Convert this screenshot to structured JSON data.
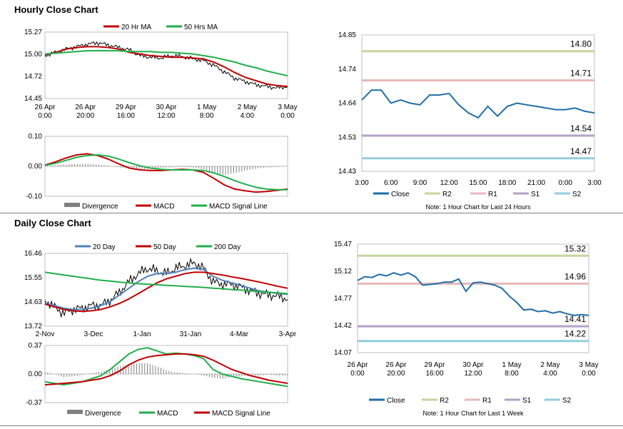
{
  "sections": {
    "hourly_title": "Hourly Close Chart",
    "daily_title": "Daily Close Chart"
  },
  "colors": {
    "red": "#C00000",
    "green": "#1FAF4B",
    "blue": "#4F81BD",
    "gray": "#808080",
    "close": "#1F6EA6",
    "r2": "#C4D79B",
    "r1": "#E6B9B8",
    "s1": "#B3A2C7",
    "s2": "#93CDDD"
  },
  "chart_data": [
    {
      "id": "hourly-price",
      "type": "line",
      "legend": [
        "20 Hr MA",
        "50 Hrs MA"
      ],
      "y_ticks": [
        "15.27",
        "15.00",
        "14.72",
        "14.45"
      ],
      "ylim": [
        14.45,
        15.27
      ],
      "x_ticks": [
        [
          "26 Apr",
          "0:00"
        ],
        [
          "26 Apr",
          "20:00"
        ],
        [
          "29 Apr",
          "16:00"
        ],
        [
          "30 Apr",
          "12:00"
        ],
        [
          "1 May",
          "8:00"
        ],
        [
          "2 May",
          "4:00"
        ],
        [
          "3 May",
          "0:00"
        ]
      ],
      "series": [
        {
          "name": "Price",
          "values": [
            14.98,
            15.02,
            15.06,
            15.09,
            15.12,
            15.14,
            15.11,
            15.08,
            15.05,
            14.98,
            14.96,
            14.95,
            14.98,
            14.97,
            14.94,
            14.92,
            14.86,
            14.78,
            14.7,
            14.66,
            14.62,
            14.6,
            14.58,
            14.6
          ]
        },
        {
          "name": "20 Hr MA",
          "values": [
            14.99,
            15.02,
            15.06,
            15.08,
            15.09,
            15.09,
            15.08,
            15.06,
            15.02,
            15.0,
            14.98,
            14.97,
            14.96,
            14.96,
            14.95,
            14.94,
            14.9,
            14.84,
            14.77,
            14.71,
            14.67,
            14.63,
            14.61,
            14.6
          ]
        },
        {
          "name": "50 Hrs MA",
          "values": [
            15.0,
            15.01,
            15.02,
            15.03,
            15.04,
            15.04,
            15.04,
            15.04,
            15.03,
            15.03,
            15.03,
            15.02,
            15.02,
            15.01,
            15.0,
            14.98,
            14.96,
            14.93,
            14.9,
            14.86,
            14.83,
            14.79,
            14.76,
            14.73
          ]
        }
      ]
    },
    {
      "id": "hourly-macd",
      "type": "line",
      "legend": [
        "Divergence",
        "MACD",
        "MACD Signal Line"
      ],
      "y_ticks": [
        "0.10",
        "0.00",
        "-0.10"
      ],
      "ylim": [
        -0.1,
        0.1
      ],
      "series": [
        {
          "name": "Divergence",
          "values": [
            0.002,
            0.004,
            0.006,
            0.008,
            0.008,
            0.006,
            0.002,
            -0.004,
            -0.008,
            -0.01,
            -0.008,
            -0.005,
            -0.003,
            -0.002,
            -0.004,
            -0.01,
            -0.02,
            -0.03,
            -0.022,
            -0.014,
            -0.008,
            -0.004,
            -0.002,
            0.0
          ]
        },
        {
          "name": "MACD",
          "values": [
            0.004,
            0.015,
            0.028,
            0.038,
            0.042,
            0.036,
            0.024,
            0.008,
            -0.006,
            -0.012,
            -0.014,
            -0.014,
            -0.012,
            -0.01,
            -0.012,
            -0.02,
            -0.04,
            -0.062,
            -0.076,
            -0.082,
            -0.086,
            -0.084,
            -0.08,
            -0.076
          ]
        },
        {
          "name": "MACD Signal Line",
          "values": [
            0.003,
            0.01,
            0.02,
            0.03,
            0.036,
            0.038,
            0.034,
            0.024,
            0.012,
            0.002,
            -0.006,
            -0.01,
            -0.012,
            -0.012,
            -0.012,
            -0.014,
            -0.022,
            -0.034,
            -0.048,
            -0.06,
            -0.07,
            -0.076,
            -0.078,
            -0.078
          ]
        }
      ]
    },
    {
      "id": "hourly-levels",
      "type": "line",
      "legend": [
        "Close",
        "R2",
        "R1",
        "S1",
        "S2"
      ],
      "note": "Note: 1 Hour Chart for Last 24 Hours",
      "y_ticks": [
        "14.85",
        "14.74",
        "14.64",
        "14.53",
        "14.43"
      ],
      "ylim": [
        14.43,
        14.85
      ],
      "x_ticks": [
        "3:00",
        "6:00",
        "9:00",
        "12:00",
        "15:00",
        "18:00",
        "21:00",
        "0:00",
        "3:00"
      ],
      "levels": [
        {
          "name": "R2",
          "value": 14.8,
          "label": "14.80"
        },
        {
          "name": "R1",
          "value": 14.71,
          "label": "14.71"
        },
        {
          "name": "S1",
          "value": 14.54,
          "label": "14.54"
        },
        {
          "name": "S2",
          "value": 14.47,
          "label": "14.47"
        }
      ],
      "series": [
        {
          "name": "Close",
          "values": [
            14.65,
            14.68,
            14.68,
            14.64,
            14.65,
            14.64,
            14.635,
            14.665,
            14.665,
            14.67,
            14.635,
            14.61,
            14.595,
            14.63,
            14.6,
            14.63,
            14.64,
            14.635,
            14.63,
            14.625,
            14.62,
            14.62,
            14.625,
            14.615,
            14.61
          ]
        }
      ]
    },
    {
      "id": "daily-price",
      "type": "line",
      "legend": [
        "20 Day",
        "50 Day",
        "200 Day"
      ],
      "y_ticks": [
        "16.46",
        "15.55",
        "14.63",
        "13.72"
      ],
      "ylim": [
        13.72,
        16.46
      ],
      "x_ticks": [
        "2-Nov",
        "3-Dec",
        "1-Jan",
        "31-Jan",
        "4-Mar",
        "3-Apr"
      ],
      "series": [
        {
          "name": "Price",
          "values": [
            14.7,
            14.45,
            14.2,
            14.35,
            14.4,
            14.5,
            14.5,
            14.7,
            15.0,
            15.4,
            15.7,
            15.9,
            15.8,
            15.7,
            15.9,
            16.0,
            16.1,
            15.9,
            15.4,
            15.3,
            15.3,
            15.2,
            15.05,
            14.95,
            14.9,
            14.85,
            14.75
          ]
        },
        {
          "name": "20 Day",
          "values": [
            14.6,
            14.5,
            14.4,
            14.35,
            14.35,
            14.4,
            14.5,
            14.65,
            14.9,
            15.15,
            15.4,
            15.6,
            15.7,
            15.7,
            15.75,
            15.85,
            15.9,
            15.85,
            15.6,
            15.45,
            15.35,
            15.25,
            15.15,
            15.05,
            15.0,
            14.95,
            14.92
          ]
        },
        {
          "name": "50 Day",
          "values": [
            14.55,
            14.45,
            14.35,
            14.3,
            14.28,
            14.3,
            14.35,
            14.45,
            14.58,
            14.75,
            14.95,
            15.15,
            15.35,
            15.5,
            15.6,
            15.7,
            15.75,
            15.75,
            15.7,
            15.65,
            15.58,
            15.52,
            15.45,
            15.38,
            15.3,
            15.22,
            15.15
          ]
        },
        {
          "name": "200 Day",
          "values": [
            15.75,
            15.7,
            15.65,
            15.6,
            15.55,
            15.5,
            15.45,
            15.42,
            15.38,
            15.35,
            15.32,
            15.3,
            15.28,
            15.26,
            15.24,
            15.22,
            15.2,
            15.18,
            15.15,
            15.13,
            15.1,
            15.08,
            15.05,
            15.02,
            15.0,
            14.97,
            14.95
          ]
        }
      ]
    },
    {
      "id": "daily-macd",
      "type": "line",
      "legend": [
        "Divergence",
        "MACD",
        "MACD Signal Line"
      ],
      "y_ticks": [
        "0.37",
        "0.00",
        "-0.37"
      ],
      "ylim": [
        -0.37,
        0.37
      ],
      "series": [
        {
          "name": "Divergence",
          "values": [
            0.03,
            0.0,
            -0.04,
            -0.03,
            -0.01,
            0.01,
            0.03,
            0.06,
            0.1,
            0.12,
            0.14,
            0.14,
            0.1,
            0.05,
            0.02,
            0.01,
            0.0,
            -0.02,
            -0.05,
            -0.06,
            -0.04,
            -0.03,
            -0.02,
            -0.02,
            -0.01,
            -0.02,
            -0.02
          ]
        },
        {
          "name": "MACD",
          "values": [
            -0.1,
            -0.12,
            -0.14,
            -0.12,
            -0.1,
            -0.06,
            -0.02,
            0.06,
            0.16,
            0.26,
            0.32,
            0.34,
            0.3,
            0.26,
            0.27,
            0.26,
            0.24,
            0.2,
            0.06,
            0.0,
            -0.03,
            -0.06,
            -0.08,
            -0.1,
            -0.12,
            -0.14,
            -0.16
          ]
        },
        {
          "name": "MACD Signal Line",
          "values": [
            -0.14,
            -0.13,
            -0.12,
            -0.11,
            -0.1,
            -0.08,
            -0.06,
            -0.02,
            0.04,
            0.12,
            0.18,
            0.22,
            0.24,
            0.25,
            0.26,
            0.26,
            0.25,
            0.23,
            0.18,
            0.12,
            0.06,
            0.02,
            -0.02,
            -0.05,
            -0.08,
            -0.1,
            -0.12
          ]
        }
      ]
    },
    {
      "id": "daily-levels",
      "type": "line",
      "legend": [
        "Close",
        "R2",
        "R1",
        "S1",
        "S2"
      ],
      "note": "Note: 1 Hour Chart for Last 1 Week",
      "y_ticks": [
        "15.47",
        "15.12",
        "14.77",
        "14.42",
        "14.07"
      ],
      "ylim": [
        14.07,
        15.47
      ],
      "x_ticks": [
        [
          "26 Apr",
          "0:00"
        ],
        [
          "26 Apr",
          "20:00"
        ],
        [
          "29 Apr",
          "16:00"
        ],
        [
          "30 Apr",
          "12:00"
        ],
        [
          "1 May",
          "8:00"
        ],
        [
          "2 May",
          "4:00"
        ],
        [
          "3 May",
          "0:00"
        ]
      ],
      "levels": [
        {
          "name": "R2",
          "value": 15.32,
          "label": "15.32"
        },
        {
          "name": "R1",
          "value": 14.96,
          "label": "14.96"
        },
        {
          "name": "S1",
          "value": 14.41,
          "label": "14.41"
        },
        {
          "name": "S2",
          "value": 14.22,
          "label": "14.22"
        }
      ],
      "series": [
        {
          "name": "Close",
          "values": [
            15.0,
            15.05,
            15.04,
            15.08,
            15.06,
            15.1,
            15.07,
            15.1,
            15.05,
            14.94,
            14.95,
            14.96,
            14.98,
            14.98,
            15.02,
            14.86,
            14.97,
            14.98,
            14.96,
            14.94,
            14.9,
            14.8,
            14.72,
            14.62,
            14.63,
            14.6,
            14.61,
            14.58,
            14.6,
            14.57,
            14.55,
            14.56,
            14.55
          ]
        }
      ]
    }
  ]
}
